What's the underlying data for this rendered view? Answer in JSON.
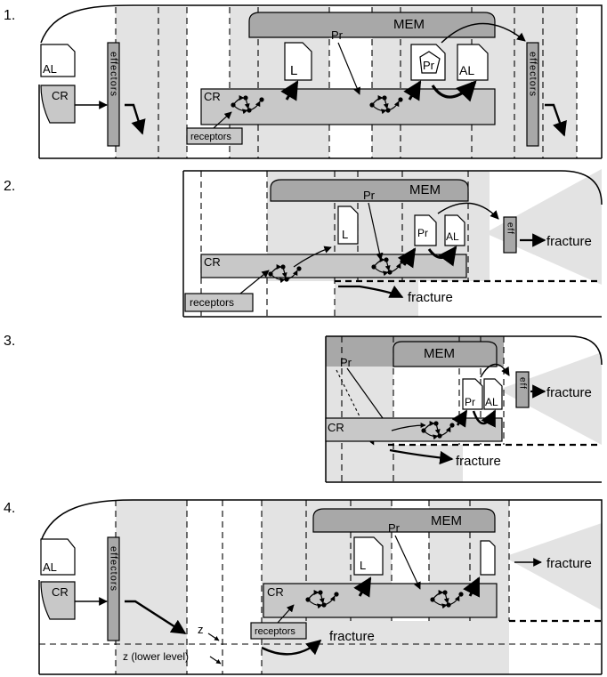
{
  "panels": [
    {
      "number": "1.",
      "mem": "MEM",
      "pr": "Pr",
      "al_left": "AL",
      "cr_left": "CR",
      "effectors_left": "effectors",
      "cr_inner": "CR",
      "doc_l": "L",
      "doc_pr": "Pr",
      "doc_al": "AL",
      "receptors": "receptors",
      "effectors_right": "effectors"
    },
    {
      "number": "2.",
      "mem": "MEM",
      "pr": "Pr",
      "cr": "CR",
      "doc_l": "L",
      "doc_pr": "Pr",
      "doc_al": "AL",
      "eff": "eff",
      "fracture_right": "fracture",
      "fracture_bottom": "fracture",
      "receptors": "receptors"
    },
    {
      "number": "3.",
      "mem": "MEM",
      "pr": "Pr",
      "cr": "CR",
      "doc_pr": "Pr",
      "doc_al": "AL",
      "eff": "eff",
      "fracture_right": "fracture",
      "fracture_bottom": "fracture"
    },
    {
      "number": "4.",
      "mem": "MEM",
      "pr": "Pr",
      "al_left": "AL",
      "cr_left": "CR",
      "effectors_left": "effectors",
      "cr_inner": "CR",
      "doc_l": "L",
      "receptors": "receptors",
      "fracture_right": "fracture",
      "fracture_bottom": "fracture",
      "z": "z",
      "z_lower": "z (lower level)"
    }
  ]
}
